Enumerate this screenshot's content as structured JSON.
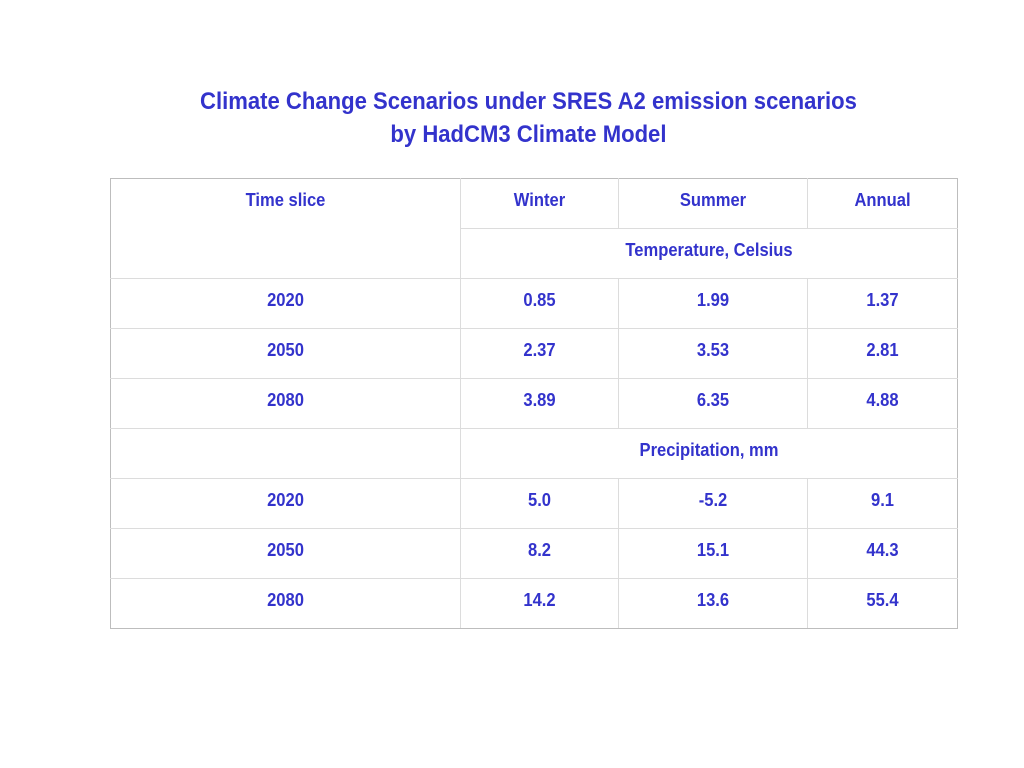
{
  "title": {
    "line1": "Climate Change Scenarios under SRES A2 emission scenarios",
    "line2": "by HadCM3 Climate Model"
  },
  "table": {
    "headers": [
      "Time slice",
      "Winter",
      "Summer",
      "Annual"
    ],
    "sections": [
      {
        "label": "Temperature, Celsius",
        "rows": [
          [
            "2020",
            "0.85",
            "1.99",
            "1.37"
          ],
          [
            "2050",
            "2.37",
            "3.53",
            "2.81"
          ],
          [
            "2080",
            "3.89",
            "6.35",
            "4.88"
          ]
        ]
      },
      {
        "label": "Precipitation, mm",
        "rows": [
          [
            "2020",
            "5.0",
            "-5.2",
            "9.1"
          ],
          [
            "2050",
            "8.2",
            "15.1",
            "44.3"
          ],
          [
            "2080",
            "14.2",
            "13.6",
            "55.4"
          ]
        ]
      }
    ]
  },
  "colors": {
    "text": "#3333cc",
    "grid": "#dcdcdc",
    "background": "#ffffff"
  }
}
